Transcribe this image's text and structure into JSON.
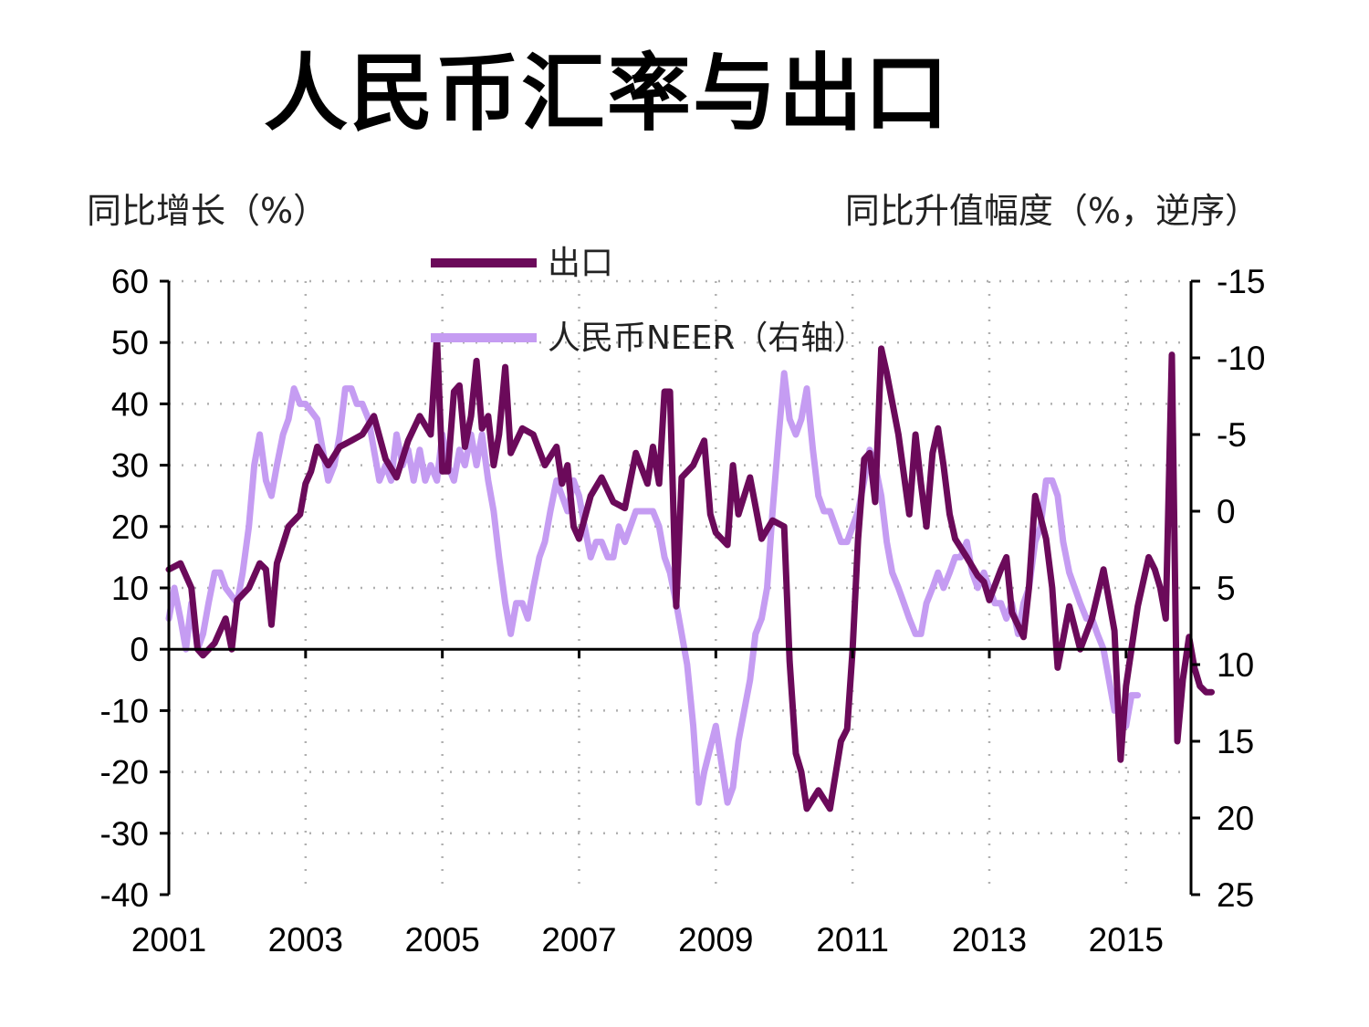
{
  "chart_data": {
    "type": "line",
    "title": "人民币汇率与出口",
    "y_left_label": "同比增长（%）",
    "y_right_label": "同比升值幅度（%，逆序）",
    "x_range": [
      2001.0,
      2015.95
    ],
    "x_ticks": [
      "2001",
      "2003",
      "2005",
      "2007",
      "2009",
      "2011",
      "2013",
      "2015"
    ],
    "y_left_range": [
      -40,
      60
    ],
    "y_left_ticks": [
      "60",
      "50",
      "40",
      "30",
      "20",
      "10",
      "0",
      "-10",
      "-20",
      "-30",
      "-40"
    ],
    "y_right_range": [
      -15,
      25
    ],
    "y_right_reversed": true,
    "y_right_ticks": [
      "-15",
      "-10",
      "-5",
      "0",
      "5",
      "10",
      "15",
      "20",
      "25"
    ],
    "grid": "dotted",
    "legend_position": "top-center",
    "series": [
      {
        "name": "出口",
        "axis": "left",
        "color": "#6b0a5a",
        "points": [
          [
            2001.0,
            13
          ],
          [
            2001.17,
            14
          ],
          [
            2001.33,
            10
          ],
          [
            2001.42,
            0
          ],
          [
            2001.5,
            -1
          ],
          [
            2001.67,
            1
          ],
          [
            2001.83,
            5
          ],
          [
            2001.92,
            0
          ],
          [
            2002.0,
            8
          ],
          [
            2002.17,
            10
          ],
          [
            2002.33,
            14
          ],
          [
            2002.42,
            13
          ],
          [
            2002.5,
            4
          ],
          [
            2002.58,
            14
          ],
          [
            2002.75,
            20
          ],
          [
            2002.92,
            22
          ],
          [
            2003.0,
            27
          ],
          [
            2003.08,
            29
          ],
          [
            2003.17,
            33
          ],
          [
            2003.33,
            30
          ],
          [
            2003.5,
            33
          ],
          [
            2003.67,
            34
          ],
          [
            2003.83,
            35
          ],
          [
            2004.0,
            38
          ],
          [
            2004.17,
            31
          ],
          [
            2004.33,
            28
          ],
          [
            2004.5,
            34
          ],
          [
            2004.67,
            38
          ],
          [
            2004.83,
            35
          ],
          [
            2004.92,
            51
          ],
          [
            2005.0,
            29
          ],
          [
            2005.08,
            29
          ],
          [
            2005.17,
            42
          ],
          [
            2005.25,
            43
          ],
          [
            2005.33,
            33
          ],
          [
            2005.42,
            38
          ],
          [
            2005.5,
            47
          ],
          [
            2005.58,
            36
          ],
          [
            2005.67,
            38
          ],
          [
            2005.75,
            30
          ],
          [
            2005.83,
            35
          ],
          [
            2005.92,
            46
          ],
          [
            2006.0,
            32
          ],
          [
            2006.17,
            36
          ],
          [
            2006.33,
            35
          ],
          [
            2006.5,
            30
          ],
          [
            2006.67,
            33
          ],
          [
            2006.75,
            27
          ],
          [
            2006.83,
            30
          ],
          [
            2006.92,
            20
          ],
          [
            2007.0,
            18
          ],
          [
            2007.17,
            25
          ],
          [
            2007.33,
            28
          ],
          [
            2007.5,
            24
          ],
          [
            2007.67,
            23
          ],
          [
            2007.83,
            32
          ],
          [
            2008.0,
            27
          ],
          [
            2008.08,
            33
          ],
          [
            2008.17,
            27
          ],
          [
            2008.25,
            42
          ],
          [
            2008.33,
            42
          ],
          [
            2008.42,
            7
          ],
          [
            2008.5,
            28
          ],
          [
            2008.67,
            30
          ],
          [
            2008.83,
            34
          ],
          [
            2008.92,
            22
          ],
          [
            2009.0,
            19
          ],
          [
            2009.17,
            17
          ],
          [
            2009.25,
            30
          ],
          [
            2009.33,
            22
          ],
          [
            2009.5,
            28
          ],
          [
            2009.67,
            18
          ],
          [
            2009.83,
            21
          ],
          [
            2010.0,
            20
          ],
          [
            2010.08,
            -2
          ],
          [
            2010.17,
            -17
          ],
          [
            2010.25,
            -20
          ],
          [
            2010.33,
            -26
          ],
          [
            2010.5,
            -23
          ],
          [
            2010.67,
            -26
          ],
          [
            2010.83,
            -15
          ],
          [
            2010.92,
            -13
          ],
          [
            2011.0,
            0
          ],
          [
            2011.08,
            18
          ],
          [
            2011.17,
            31
          ],
          [
            2011.25,
            32
          ],
          [
            2011.33,
            24
          ],
          [
            2011.42,
            49
          ],
          [
            2011.5,
            45
          ],
          [
            2011.67,
            35
          ],
          [
            2011.83,
            22
          ],
          [
            2011.92,
            35
          ],
          [
            2012.0,
            27
          ],
          [
            2012.08,
            20
          ],
          [
            2012.17,
            32
          ],
          [
            2012.25,
            36
          ],
          [
            2012.33,
            30
          ],
          [
            2012.42,
            22
          ],
          [
            2012.5,
            18
          ],
          [
            2012.67,
            15
          ],
          [
            2012.83,
            12
          ],
          [
            2012.92,
            11
          ],
          [
            2013.0,
            8
          ],
          [
            2013.17,
            13
          ],
          [
            2013.25,
            15
          ],
          [
            2013.33,
            6
          ],
          [
            2013.5,
            2
          ],
          [
            2013.58,
            10
          ],
          [
            2013.67,
            25
          ],
          [
            2013.83,
            18
          ],
          [
            2013.92,
            10
          ],
          [
            2014.0,
            -3
          ],
          [
            2014.17,
            7
          ],
          [
            2014.33,
            0
          ],
          [
            2014.5,
            5
          ],
          [
            2014.67,
            13
          ],
          [
            2014.83,
            3
          ],
          [
            2014.92,
            -18
          ],
          [
            2015.0,
            -6
          ],
          [
            2015.17,
            7
          ],
          [
            2015.33,
            15
          ],
          [
            2015.42,
            13
          ],
          [
            2015.5,
            10
          ],
          [
            2015.58,
            5
          ],
          [
            2015.67,
            48
          ],
          [
            2015.75,
            -15
          ],
          [
            2015.83,
            -5
          ],
          [
            2015.92,
            2
          ],
          [
            2016.0,
            -3
          ],
          [
            2016.08,
            -6
          ],
          [
            2016.17,
            -7
          ],
          [
            2016.25,
            -7
          ]
        ]
      },
      {
        "name": "人民币NEER（右轴）",
        "axis": "right",
        "color": "#c59cf2",
        "points": [
          [
            2001.0,
            7
          ],
          [
            2001.08,
            5
          ],
          [
            2001.17,
            7
          ],
          [
            2001.25,
            9
          ],
          [
            2001.33,
            6
          ],
          [
            2001.42,
            9
          ],
          [
            2001.5,
            8
          ],
          [
            2001.58,
            6
          ],
          [
            2001.67,
            4
          ],
          [
            2001.75,
            4
          ],
          [
            2001.83,
            5
          ],
          [
            2002.0,
            6
          ],
          [
            2002.08,
            4
          ],
          [
            2002.17,
            1
          ],
          [
            2002.25,
            -3
          ],
          [
            2002.33,
            -5
          ],
          [
            2002.42,
            -2
          ],
          [
            2002.5,
            -1
          ],
          [
            2002.58,
            -3
          ],
          [
            2002.67,
            -5
          ],
          [
            2002.75,
            -6
          ],
          [
            2002.83,
            -8
          ],
          [
            2002.92,
            -7
          ],
          [
            2003.0,
            -7
          ],
          [
            2003.17,
            -6
          ],
          [
            2003.25,
            -4
          ],
          [
            2003.33,
            -2
          ],
          [
            2003.42,
            -3
          ],
          [
            2003.5,
            -5
          ],
          [
            2003.58,
            -8
          ],
          [
            2003.67,
            -8
          ],
          [
            2003.75,
            -7
          ],
          [
            2003.83,
            -7
          ],
          [
            2003.92,
            -6
          ],
          [
            2004.0,
            -4
          ],
          [
            2004.08,
            -2
          ],
          [
            2004.17,
            -3
          ],
          [
            2004.25,
            -2
          ],
          [
            2004.33,
            -5
          ],
          [
            2004.42,
            -3
          ],
          [
            2004.5,
            -4
          ],
          [
            2004.58,
            -2
          ],
          [
            2004.67,
            -4
          ],
          [
            2004.75,
            -2
          ],
          [
            2004.83,
            -3
          ],
          [
            2004.92,
            -2
          ],
          [
            2005.0,
            -5
          ],
          [
            2005.08,
            -3
          ],
          [
            2005.17,
            -2
          ],
          [
            2005.25,
            -4
          ],
          [
            2005.33,
            -3
          ],
          [
            2005.42,
            -5
          ],
          [
            2005.5,
            -3
          ],
          [
            2005.58,
            -5
          ],
          [
            2005.67,
            -2
          ],
          [
            2005.75,
            0
          ],
          [
            2005.83,
            3
          ],
          [
            2005.92,
            6
          ],
          [
            2006.0,
            8
          ],
          [
            2006.08,
            6
          ],
          [
            2006.17,
            6
          ],
          [
            2006.25,
            7
          ],
          [
            2006.33,
            5
          ],
          [
            2006.42,
            3
          ],
          [
            2006.5,
            2
          ],
          [
            2006.58,
            0
          ],
          [
            2006.67,
            -2
          ],
          [
            2006.75,
            -1
          ],
          [
            2006.83,
            0
          ],
          [
            2006.92,
            -2
          ],
          [
            2007.0,
            -1
          ],
          [
            2007.08,
            1
          ],
          [
            2007.17,
            3
          ],
          [
            2007.25,
            2
          ],
          [
            2007.33,
            2
          ],
          [
            2007.42,
            3
          ],
          [
            2007.5,
            3
          ],
          [
            2007.58,
            1
          ],
          [
            2007.67,
            2
          ],
          [
            2007.75,
            1
          ],
          [
            2007.83,
            0
          ],
          [
            2007.92,
            0
          ],
          [
            2008.0,
            0
          ],
          [
            2008.08,
            0
          ],
          [
            2008.17,
            1
          ],
          [
            2008.25,
            3
          ],
          [
            2008.33,
            4
          ],
          [
            2008.42,
            6
          ],
          [
            2008.5,
            8
          ],
          [
            2008.58,
            10
          ],
          [
            2008.67,
            14
          ],
          [
            2008.75,
            19
          ],
          [
            2008.83,
            17
          ],
          [
            2009.0,
            14
          ],
          [
            2009.17,
            19
          ],
          [
            2009.25,
            18
          ],
          [
            2009.33,
            15
          ],
          [
            2009.5,
            11
          ],
          [
            2009.58,
            8
          ],
          [
            2009.67,
            7
          ],
          [
            2009.75,
            5
          ],
          [
            2009.83,
            0
          ],
          [
            2009.92,
            -5
          ],
          [
            2010.0,
            -9
          ],
          [
            2010.08,
            -6
          ],
          [
            2010.17,
            -5
          ],
          [
            2010.25,
            -6
          ],
          [
            2010.33,
            -8
          ],
          [
            2010.42,
            -4
          ],
          [
            2010.5,
            -1
          ],
          [
            2010.58,
            0
          ],
          [
            2010.67,
            0
          ],
          [
            2010.75,
            1
          ],
          [
            2010.83,
            2
          ],
          [
            2010.92,
            2
          ],
          [
            2011.0,
            1
          ],
          [
            2011.08,
            0
          ],
          [
            2011.17,
            -2
          ],
          [
            2011.25,
            -4
          ],
          [
            2011.33,
            -3
          ],
          [
            2011.42,
            -1
          ],
          [
            2011.5,
            2
          ],
          [
            2011.58,
            4
          ],
          [
            2011.67,
            5
          ],
          [
            2011.75,
            6
          ],
          [
            2011.83,
            7
          ],
          [
            2011.92,
            8
          ],
          [
            2012.0,
            8
          ],
          [
            2012.08,
            6
          ],
          [
            2012.17,
            5
          ],
          [
            2012.25,
            4
          ],
          [
            2012.33,
            5
          ],
          [
            2012.42,
            4
          ],
          [
            2012.5,
            3
          ],
          [
            2012.58,
            3
          ],
          [
            2012.67,
            2
          ],
          [
            2012.75,
            4
          ],
          [
            2012.83,
            5
          ],
          [
            2012.92,
            4
          ],
          [
            2013.0,
            5
          ],
          [
            2013.08,
            6
          ],
          [
            2013.17,
            6
          ],
          [
            2013.25,
            7
          ],
          [
            2013.33,
            6
          ],
          [
            2013.42,
            8
          ],
          [
            2013.5,
            6
          ],
          [
            2013.58,
            5
          ],
          [
            2013.67,
            2
          ],
          [
            2013.75,
            1
          ],
          [
            2013.83,
            -2
          ],
          [
            2013.92,
            -2
          ],
          [
            2014.0,
            -1
          ],
          [
            2014.08,
            2
          ],
          [
            2014.17,
            4
          ],
          [
            2014.25,
            5
          ],
          [
            2014.33,
            6
          ],
          [
            2014.42,
            7
          ],
          [
            2014.5,
            7
          ],
          [
            2014.58,
            8
          ],
          [
            2014.67,
            9
          ],
          [
            2014.75,
            11
          ],
          [
            2014.83,
            13
          ],
          [
            2014.92,
            13
          ],
          [
            2015.0,
            14
          ],
          [
            2015.08,
            12
          ],
          [
            2015.17,
            12
          ]
        ]
      }
    ]
  }
}
